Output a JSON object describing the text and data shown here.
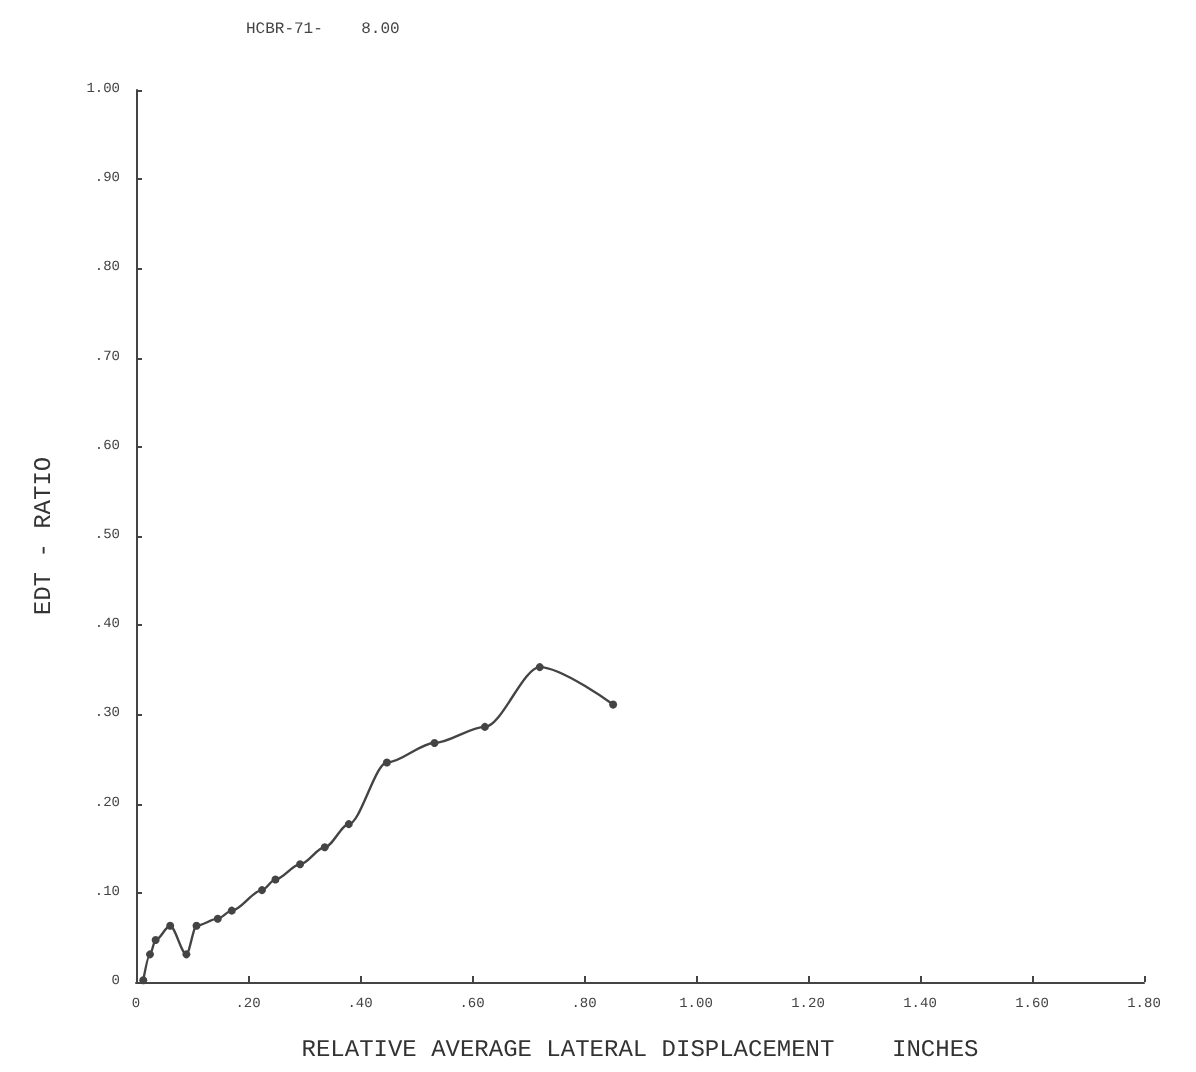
{
  "chart_data": {
    "type": "line",
    "title": "HCBR-71-    8.00",
    "xlabel": "RELATIVE AVERAGE LATERAL DISPLACEMENT    INCHES",
    "ylabel": "EDT - RATIO",
    "x": [
      0.013,
      0.025,
      0.035,
      0.061,
      0.09,
      0.108,
      0.146,
      0.171,
      0.225,
      0.249,
      0.293,
      0.337,
      0.38,
      0.448,
      0.533,
      0.623,
      0.721,
      0.852
    ],
    "series": [
      {
        "color": "#444444",
        "values": [
          0.002,
          0.031,
          0.047,
          0.063,
          0.031,
          0.063,
          0.071,
          0.08,
          0.103,
          0.115,
          0.132,
          0.151,
          0.177,
          0.246,
          0.268,
          0.286,
          0.353,
          0.311
        ]
      }
    ],
    "xlim": [
      0,
      1.8
    ],
    "ylim": [
      0,
      1
    ],
    "xticks": [
      {
        "value": 0,
        "label": "0"
      },
      {
        "value": 0.2,
        "label": ".20"
      },
      {
        "value": 0.4,
        "label": ".40"
      },
      {
        "value": 0.6,
        "label": ".60"
      },
      {
        "value": 0.8,
        "label": ".80"
      },
      {
        "value": 1.0,
        "label": "1.00"
      },
      {
        "value": 1.2,
        "label": "1.20"
      },
      {
        "value": 1.4,
        "label": "1.40"
      },
      {
        "value": 1.6,
        "label": "1.60"
      },
      {
        "value": 1.8,
        "label": "1.80"
      }
    ],
    "yticks": [
      {
        "value": 0,
        "label": "0"
      },
      {
        "value": 0.1,
        "label": ".10"
      },
      {
        "value": 0.2,
        "label": ".20"
      },
      {
        "value": 0.3,
        "label": ".30"
      },
      {
        "value": 0.4,
        "label": ".40"
      },
      {
        "value": 0.5,
        "label": ".50"
      },
      {
        "value": 0.6,
        "label": ".60"
      },
      {
        "value": 0.7,
        "label": ".70"
      },
      {
        "value": 0.8,
        "label": ".80"
      },
      {
        "value": 0.9,
        "label": ".90"
      },
      {
        "value": 1.0,
        "label": "1.00"
      }
    ],
    "grid": false,
    "marker": "circle",
    "line_style": "solid"
  }
}
